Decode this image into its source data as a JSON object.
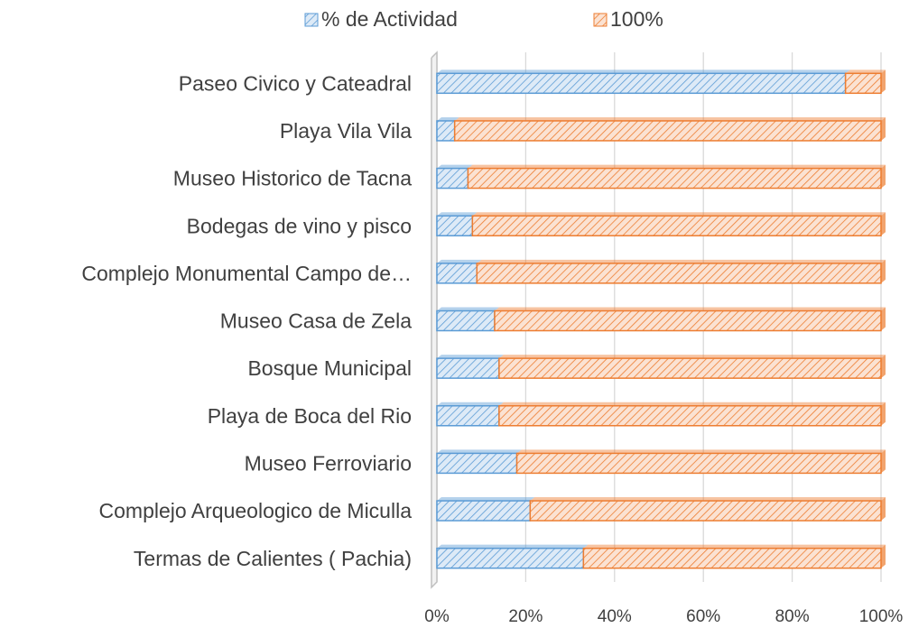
{
  "chart_data": {
    "type": "stacked_bar_horizontal",
    "categories": [
      "Paseo Civico y Cateadral",
      "Playa Vila Vila",
      "Museo Historico de Tacna",
      "Bodegas de vino y pisco",
      "Complejo Monumental Campo de…",
      "Museo Casa de Zela",
      "Bosque Municipal",
      "Playa de Boca del Rio",
      "Museo Ferroviario",
      "Complejo Arqueologico de Miculla",
      "Termas de Calientes ( Pachia)"
    ],
    "series": [
      {
        "name": "% de Actividad",
        "color": "#5b9bd5",
        "values": [
          92,
          4,
          7,
          8,
          9,
          13,
          14,
          14,
          18,
          21,
          33
        ]
      },
      {
        "name": "100%",
        "color": "#ed7d31",
        "values": [
          8,
          96,
          93,
          92,
          91,
          87,
          86,
          86,
          82,
          79,
          67
        ]
      }
    ],
    "xlim": [
      0,
      100
    ],
    "xticks": [
      {
        "value": 0,
        "label": "0%"
      },
      {
        "value": 20,
        "label": "20%"
      },
      {
        "value": 40,
        "label": "40%"
      },
      {
        "value": 60,
        "label": "60%"
      },
      {
        "value": 80,
        "label": "80%"
      },
      {
        "value": 100,
        "label": "100%"
      }
    ],
    "grid": true,
    "legend": "top"
  }
}
